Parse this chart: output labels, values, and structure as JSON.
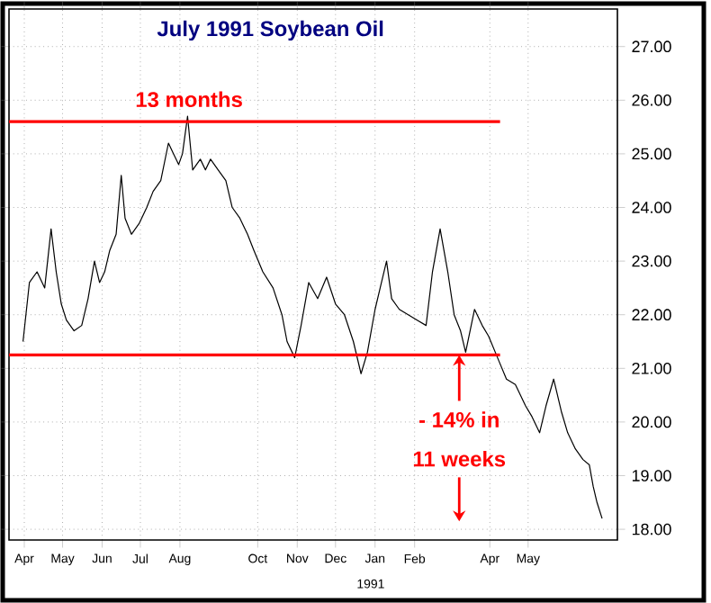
{
  "chart_data": {
    "type": "line",
    "title": "July 1991 Soybean Oil",
    "xlim": [
      "1990-04-03",
      "1991-07-24"
    ],
    "xticks": [
      {
        "value": "1990-04-15",
        "label": "Apr"
      },
      {
        "value": "1990-05-15",
        "label": "May"
      },
      {
        "value": "1990-06-15",
        "label": "Jun"
      },
      {
        "value": "1990-07-15",
        "label": "Jul"
      },
      {
        "value": "1990-08-15",
        "label": "Aug"
      },
      {
        "value": "1990-10-15",
        "label": "Oct"
      },
      {
        "value": "1990-11-15",
        "label": "Nov"
      },
      {
        "value": "1990-12-15",
        "label": "Dec"
      },
      {
        "value": "1991-01-15",
        "label": "Jan"
      },
      {
        "value": "1991-02-15",
        "label": "Feb"
      },
      {
        "value": "1991-04-15",
        "label": "Apr"
      },
      {
        "value": "1991-05-15",
        "label": "May"
      }
    ],
    "ylim": [
      17.8,
      27.7
    ],
    "yticks": [
      {
        "value": 18,
        "label": "18.00"
      },
      {
        "value": 19,
        "label": "19.00"
      },
      {
        "value": 20,
        "label": "20.00"
      },
      {
        "value": 21,
        "label": "21.00"
      },
      {
        "value": 22,
        "label": "22.00"
      },
      {
        "value": 23,
        "label": "23.00"
      },
      {
        "value": 24,
        "label": "24.00"
      },
      {
        "value": 25,
        "label": "25.00"
      },
      {
        "value": 26,
        "label": "26.00"
      },
      {
        "value": 27,
        "label": "27.00"
      }
    ],
    "grid": true,
    "marker": "none",
    "line_style": "solid",
    "series": [
      {
        "color": "#000000",
        "x": [
          "1990-04-14",
          "1990-04-19",
          "1990-04-25",
          "1990-05-01",
          "1990-05-06",
          "1990-05-10",
          "1990-05-14",
          "1990-05-18",
          "1990-05-24",
          "1990-05-30",
          "1990-06-04",
          "1990-06-09",
          "1990-06-13",
          "1990-06-17",
          "1990-06-21",
          "1990-06-26",
          "1990-06-30",
          "1990-07-03",
          "1990-07-08",
          "1990-07-14",
          "1990-07-20",
          "1990-07-25",
          "1990-07-31",
          "1990-08-06",
          "1990-08-10",
          "1990-08-14",
          "1990-08-17",
          "1990-08-21",
          "1990-08-25",
          "1990-08-31",
          "1990-09-04",
          "1990-09-08",
          "1990-09-14",
          "1990-09-20",
          "1990-09-25",
          "1990-10-01",
          "1990-10-07",
          "1990-10-12",
          "1990-10-19",
          "1990-10-27",
          "1990-11-03",
          "1990-11-07",
          "1990-11-13",
          "1990-11-18",
          "1990-11-24",
          "1990-12-01",
          "1990-12-08",
          "1990-12-15",
          "1990-12-22",
          "1990-12-29",
          "1991-01-04",
          "1991-01-09",
          "1991-01-15",
          "1991-01-19",
          "1991-01-24",
          "1991-01-28",
          "1991-02-03",
          "1991-02-10",
          "1991-02-17",
          "1991-02-24",
          "1991-03-01",
          "1991-03-07",
          "1991-03-13",
          "1991-03-18",
          "1991-03-23",
          "1991-03-27",
          "1991-04-03",
          "1991-04-09",
          "1991-04-14",
          "1991-04-21",
          "1991-04-28",
          "1991-05-05",
          "1991-05-13",
          "1991-05-18",
          "1991-05-24",
          "1991-05-29",
          "1991-06-04",
          "1991-06-10",
          "1991-06-15",
          "1991-06-21",
          "1991-06-27",
          "1991-07-02",
          "1991-07-05",
          "1991-07-08",
          "1991-07-12"
        ],
        "values": [
          21.5,
          22.6,
          22.8,
          22.5,
          23.6,
          22.8,
          22.2,
          21.9,
          21.7,
          21.8,
          22.3,
          23.0,
          22.6,
          22.8,
          23.2,
          23.5,
          24.6,
          23.8,
          23.5,
          23.7,
          24.0,
          24.3,
          24.5,
          25.2,
          25.0,
          24.8,
          25.0,
          25.7,
          24.7,
          24.9,
          24.7,
          24.9,
          24.7,
          24.5,
          24.0,
          23.8,
          23.5,
          23.2,
          22.8,
          22.5,
          22.0,
          21.5,
          21.2,
          21.8,
          22.6,
          22.3,
          22.7,
          22.2,
          22.0,
          21.5,
          20.9,
          21.3,
          22.1,
          22.5,
          23.0,
          22.3,
          22.1,
          22.0,
          21.9,
          21.8,
          22.8,
          23.6,
          22.8,
          22.0,
          21.7,
          21.3,
          22.1,
          21.8,
          21.6,
          21.2,
          20.8,
          20.7,
          20.3,
          20.1,
          19.8,
          20.3,
          20.8,
          20.2,
          19.8,
          19.5,
          19.3,
          19.2,
          18.8,
          18.5,
          18.2
        ]
      },
      {
        "type": "line",
        "color": "#ff0000",
        "x": [
          "1990-04-03",
          "1991-04-23"
        ],
        "values": [
          25.6,
          25.6
        ]
      },
      {
        "type": "line",
        "color": "#ff0000",
        "x": [
          "1990-04-03",
          "1991-04-23"
        ],
        "values": [
          21.25,
          21.25
        ]
      }
    ],
    "annotations": [
      "13 months",
      "- 14% in",
      "11 weeks",
      "1991"
    ]
  }
}
